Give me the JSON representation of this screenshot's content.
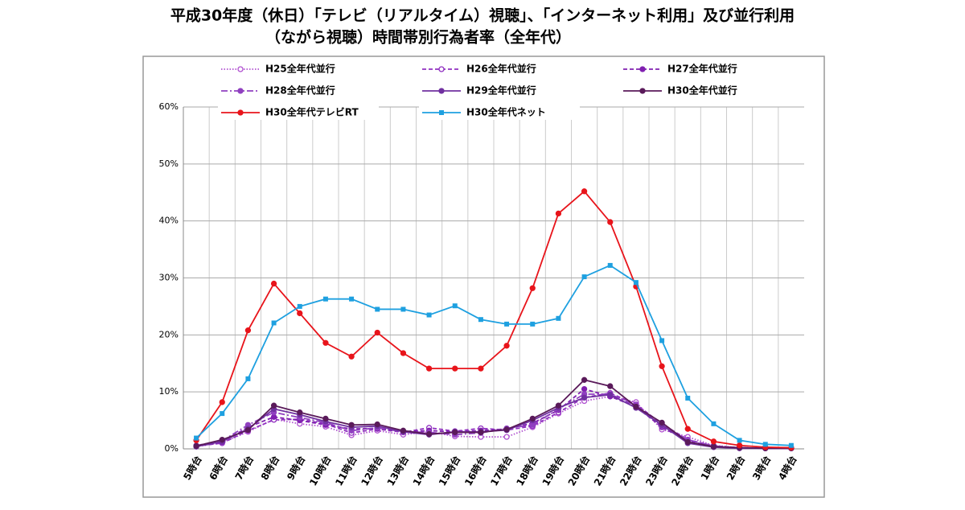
{
  "chart_data": {
    "type": "line",
    "title": [
      "平成30年度（休日）「テレビ（リアルタイム）視聴」、「インターネット利用」及び並行利用",
      "（ながら視聴）時間帯別行為者率（全年代）"
    ],
    "categories": [
      "5時台",
      "6時台",
      "7時台",
      "8時台",
      "9時台",
      "10時台",
      "11時台",
      "12時台",
      "13時台",
      "14時台",
      "15時台",
      "16時台",
      "17時台",
      "18時台",
      "19時台",
      "20時台",
      "21時台",
      "22時台",
      "23時台",
      "24時台",
      "1時台",
      "2時台",
      "3時台",
      "4時台"
    ],
    "ylim": [
      0,
      60
    ],
    "yticks": [
      {
        "value": 0,
        "label": "0%"
      },
      {
        "value": 10,
        "label": "10%"
      },
      {
        "value": 20,
        "label": "20%"
      },
      {
        "value": 30,
        "label": "30%"
      },
      {
        "value": 40,
        "label": "40%"
      },
      {
        "value": 50,
        "label": "50%"
      },
      {
        "value": 60,
        "label": "60%"
      }
    ],
    "grid": true,
    "legend": "top-left",
    "series": [
      {
        "name": "H25全年代並行",
        "color": "#b050d0",
        "line_style": "dotted",
        "marker": "open-circle",
        "values": [
          0.4,
          1.1,
          3.0,
          5.2,
          4.4,
          3.9,
          2.4,
          3.2,
          2.5,
          3.0,
          2.2,
          2.1,
          2.1,
          3.8,
          6.2,
          8.4,
          9.2,
          8.2,
          3.4,
          2.1,
          0.6,
          0.2,
          0.1,
          0.1
        ]
      },
      {
        "name": "H26全年代並行",
        "color": "#9030c0",
        "line_style": "dashed",
        "marker": "open-circle",
        "values": [
          0.5,
          1.0,
          3.2,
          5.1,
          5.2,
          4.4,
          2.8,
          3.5,
          2.9,
          3.7,
          3.1,
          3.6,
          3.3,
          4.0,
          6.4,
          9.0,
          9.8,
          7.8,
          4.4,
          1.6,
          0.5,
          0.2,
          0.1,
          0.1
        ]
      },
      {
        "name": "H27全年代並行",
        "color": "#8020b0",
        "line_style": "dashed",
        "marker": "circle",
        "values": [
          0.5,
          1.2,
          3.8,
          5.6,
          5.0,
          4.2,
          3.5,
          3.6,
          3.0,
          3.2,
          3.0,
          3.2,
          3.5,
          4.5,
          6.8,
          10.5,
          9.2,
          7.4,
          3.8,
          1.4,
          0.4,
          0.2,
          0.1,
          0.1
        ]
      },
      {
        "name": "H28全年代並行",
        "color": "#9040c0",
        "line_style": "dashdot",
        "marker": "circle",
        "values": [
          0.6,
          1.4,
          4.2,
          6.4,
          5.5,
          4.6,
          3.2,
          3.7,
          3.0,
          2.9,
          2.5,
          2.8,
          3.6,
          4.2,
          7.0,
          9.6,
          9.6,
          7.6,
          4.0,
          1.6,
          0.5,
          0.2,
          0.1,
          0.1
        ]
      },
      {
        "name": "H29全年代並行",
        "color": "#7030a0",
        "line_style": "solid",
        "marker": "circle",
        "values": [
          0.4,
          1.3,
          3.5,
          7.0,
          6.0,
          4.8,
          3.8,
          4.0,
          3.0,
          2.5,
          3.0,
          3.0,
          3.3,
          5.0,
          7.2,
          9.0,
          9.5,
          7.2,
          4.2,
          1.0,
          0.3,
          0.1,
          0.1,
          0.1
        ]
      },
      {
        "name": "H30全年代並行",
        "color": "#5a1a5a",
        "line_style": "solid",
        "marker": "circle",
        "values": [
          0.5,
          1.6,
          3.3,
          7.6,
          6.4,
          5.3,
          4.2,
          4.3,
          3.2,
          2.6,
          2.9,
          2.9,
          3.4,
          5.3,
          7.6,
          12.1,
          11.0,
          7.4,
          4.6,
          1.2,
          0.4,
          0.2,
          0.1,
          0.1
        ]
      },
      {
        "name": "H30全年代テレビRT",
        "color": "#e8141b",
        "line_style": "solid",
        "marker": "circle",
        "values": [
          1.5,
          8.2,
          20.8,
          29.0,
          23.8,
          18.6,
          16.2,
          20.4,
          16.8,
          14.1,
          14.1,
          14.1,
          18.1,
          28.2,
          41.3,
          45.2,
          39.8,
          28.5,
          14.5,
          3.5,
          1.3,
          0.6,
          0.3,
          0.2
        ]
      },
      {
        "name": "H30全年代ネット",
        "color": "#1ea0e0",
        "line_style": "solid",
        "marker": "square",
        "values": [
          1.9,
          6.2,
          12.3,
          22.1,
          25.0,
          26.3,
          26.3,
          24.5,
          24.5,
          23.5,
          25.1,
          22.7,
          21.9,
          21.9,
          22.9,
          30.2,
          32.2,
          29.2,
          19.0,
          8.9,
          4.4,
          1.5,
          0.8,
          0.6
        ]
      }
    ]
  }
}
